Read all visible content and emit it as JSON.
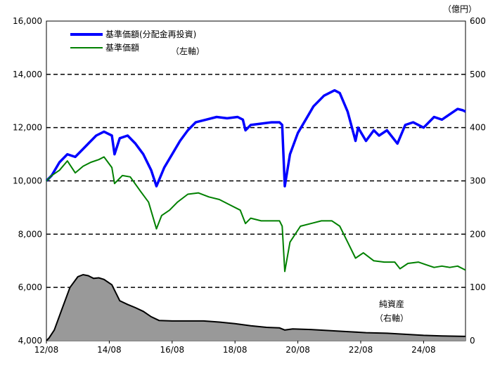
{
  "chart_data": {
    "type": "line",
    "unit_right": "（億円）",
    "x_ticks": [
      "12/08",
      "14/08",
      "16/08",
      "18/08",
      "20/08",
      "22/08",
      "24/08"
    ],
    "y_left_ticks": [
      "4,000",
      "6,000",
      "8,000",
      "10,000",
      "12,000",
      "14,000",
      "16,000"
    ],
    "y_right_ticks": [
      "0",
      "100",
      "200",
      "300",
      "400",
      "500",
      "600"
    ],
    "ylim_left": [
      4000,
      16000
    ],
    "ylim_right": [
      0,
      600
    ],
    "xlim": [
      "2012-08",
      "2025-12"
    ],
    "grid": "horizontal dashed",
    "legend": {
      "position": "top-left",
      "items": [
        {
          "label": "基準価額(分配金再投資)",
          "color": "#0000ff"
        },
        {
          "label": "基準価額",
          "color": "#008000"
        }
      ],
      "note": "（左軸）"
    },
    "area_label": "純資産",
    "area_axis_note": "（右軸）",
    "series": [
      {
        "name": "基準価額(分配金再投資)",
        "axis": "left",
        "color": "#0000ff",
        "points": [
          [
            "2012-08",
            10000
          ],
          [
            "2012-10",
            10200
          ],
          [
            "2013-01",
            10700
          ],
          [
            "2013-04",
            11000
          ],
          [
            "2013-07",
            10900
          ],
          [
            "2013-10",
            11200
          ],
          [
            "2014-01",
            11500
          ],
          [
            "2014-03",
            11700
          ],
          [
            "2014-06",
            11850
          ],
          [
            "2014-09",
            11700
          ],
          [
            "2014-10",
            11000
          ],
          [
            "2014-12",
            11600
          ],
          [
            "2015-03",
            11700
          ],
          [
            "2015-06",
            11400
          ],
          [
            "2015-09",
            11000
          ],
          [
            "2015-12",
            10400
          ],
          [
            "2016-02",
            9800
          ],
          [
            "2016-05",
            10500
          ],
          [
            "2016-08",
            11000
          ],
          [
            "2016-11",
            11500
          ],
          [
            "2017-02",
            11900
          ],
          [
            "2017-05",
            12200
          ],
          [
            "2017-09",
            12300
          ],
          [
            "2018-01",
            12400
          ],
          [
            "2018-05",
            12350
          ],
          [
            "2018-09",
            12400
          ],
          [
            "2018-11",
            12300
          ],
          [
            "2018-12",
            11900
          ],
          [
            "2019-02",
            12100
          ],
          [
            "2019-06",
            12150
          ],
          [
            "2019-10",
            12200
          ],
          [
            "2020-01",
            12200
          ],
          [
            "2020-02",
            12100
          ],
          [
            "2020-03",
            9800
          ],
          [
            "2020-05",
            11000
          ],
          [
            "2020-08",
            11800
          ],
          [
            "2020-11",
            12300
          ],
          [
            "2021-02",
            12800
          ],
          [
            "2021-06",
            13200
          ],
          [
            "2021-10",
            13400
          ],
          [
            "2021-12",
            13300
          ],
          [
            "2022-03",
            12600
          ],
          [
            "2022-06",
            11500
          ],
          [
            "2022-07",
            12000
          ],
          [
            "2022-10",
            11500
          ],
          [
            "2023-01",
            11900
          ],
          [
            "2023-03",
            11700
          ],
          [
            "2023-06",
            11900
          ],
          [
            "2023-10",
            11400
          ],
          [
            "2024-01",
            12100
          ],
          [
            "2024-04",
            12200
          ],
          [
            "2024-08",
            12000
          ],
          [
            "2024-12",
            12400
          ],
          [
            "2025-03",
            12300
          ],
          [
            "2025-06",
            12500
          ],
          [
            "2025-09",
            12700
          ],
          [
            "2025-11",
            12650
          ],
          [
            "2025-12",
            12600
          ]
        ]
      },
      {
        "name": "基準価額",
        "axis": "left",
        "color": "#008000",
        "points": [
          [
            "2012-08",
            10000
          ],
          [
            "2012-10",
            10200
          ],
          [
            "2013-01",
            10400
          ],
          [
            "2013-04",
            10750
          ],
          [
            "2013-07",
            10300
          ],
          [
            "2013-10",
            10550
          ],
          [
            "2014-01",
            10700
          ],
          [
            "2014-04",
            10800
          ],
          [
            "2014-06",
            10900
          ],
          [
            "2014-09",
            10500
          ],
          [
            "2014-10",
            9900
          ],
          [
            "2015-01",
            10200
          ],
          [
            "2015-04",
            10150
          ],
          [
            "2015-08",
            9600
          ],
          [
            "2015-11",
            9200
          ],
          [
            "2016-02",
            8200
          ],
          [
            "2016-04",
            8700
          ],
          [
            "2016-07",
            8900
          ],
          [
            "2016-10",
            9200
          ],
          [
            "2017-02",
            9500
          ],
          [
            "2017-06",
            9550
          ],
          [
            "2017-10",
            9400
          ],
          [
            "2018-02",
            9300
          ],
          [
            "2018-06",
            9100
          ],
          [
            "2018-10",
            8900
          ],
          [
            "2018-12",
            8400
          ],
          [
            "2019-02",
            8600
          ],
          [
            "2019-06",
            8500
          ],
          [
            "2019-10",
            8500
          ],
          [
            "2020-01",
            8500
          ],
          [
            "2020-02",
            8300
          ],
          [
            "2020-03",
            6600
          ],
          [
            "2020-05",
            7700
          ],
          [
            "2020-09",
            8300
          ],
          [
            "2021-01",
            8400
          ],
          [
            "2021-05",
            8500
          ],
          [
            "2021-09",
            8500
          ],
          [
            "2021-12",
            8300
          ],
          [
            "2022-03",
            7700
          ],
          [
            "2022-06",
            7100
          ],
          [
            "2022-09",
            7300
          ],
          [
            "2023-01",
            7000
          ],
          [
            "2023-05",
            6950
          ],
          [
            "2023-09",
            6950
          ],
          [
            "2023-11",
            6700
          ],
          [
            "2024-02",
            6900
          ],
          [
            "2024-06",
            6950
          ],
          [
            "2024-09",
            6850
          ],
          [
            "2024-12",
            6750
          ],
          [
            "2025-03",
            6800
          ],
          [
            "2025-06",
            6750
          ],
          [
            "2025-09",
            6800
          ],
          [
            "2025-12",
            6650
          ]
        ]
      },
      {
        "name": "純資産",
        "axis": "right",
        "type": "area",
        "color": "#999999",
        "points": [
          [
            "2012-08",
            0
          ],
          [
            "2012-09",
            5
          ],
          [
            "2012-11",
            20
          ],
          [
            "2013-02",
            60
          ],
          [
            "2013-05",
            100
          ],
          [
            "2013-08",
            120
          ],
          [
            "2013-10",
            124
          ],
          [
            "2013-12",
            122
          ],
          [
            "2014-02",
            117
          ],
          [
            "2014-04",
            118
          ],
          [
            "2014-06",
            115
          ],
          [
            "2014-09",
            105
          ],
          [
            "2014-12",
            75
          ],
          [
            "2015-03",
            68
          ],
          [
            "2015-06",
            62
          ],
          [
            "2015-09",
            55
          ],
          [
            "2015-12",
            45
          ],
          [
            "2016-03",
            38
          ],
          [
            "2016-08",
            37
          ],
          [
            "2017-02",
            37
          ],
          [
            "2017-08",
            37
          ],
          [
            "2018-02",
            35
          ],
          [
            "2018-08",
            32
          ],
          [
            "2019-02",
            28
          ],
          [
            "2019-08",
            25
          ],
          [
            "2020-01",
            24
          ],
          [
            "2020-03",
            20
          ],
          [
            "2020-06",
            22
          ],
          [
            "2021-01",
            21
          ],
          [
            "2021-08",
            19
          ],
          [
            "2022-03",
            17
          ],
          [
            "2022-10",
            15
          ],
          [
            "2023-06",
            14
          ],
          [
            "2024-01",
            12
          ],
          [
            "2024-08",
            10
          ],
          [
            "2025-03",
            9
          ],
          [
            "2025-12",
            8
          ]
        ]
      }
    ]
  }
}
